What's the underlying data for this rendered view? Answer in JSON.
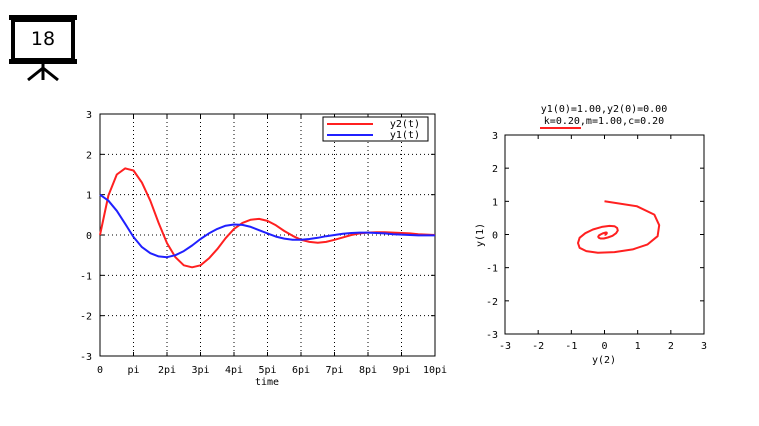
{
  "slide": {
    "number": "18"
  },
  "chart_data": [
    {
      "type": "line",
      "title": "",
      "xlabel": "time",
      "ylabel": "",
      "xlim": [
        0,
        10
      ],
      "ylim": [
        -3,
        3
      ],
      "x_unit": "pi",
      "xticks": [
        0,
        1,
        2,
        3,
        4,
        5,
        6,
        7,
        8,
        9,
        10
      ],
      "xtick_labels": [
        "0",
        "pi",
        "2pi",
        "3pi",
        "4pi",
        "5pi",
        "6pi",
        "7pi",
        "8pi",
        "9pi",
        "10pi"
      ],
      "yticks": [
        -3,
        -2,
        -1,
        0,
        1,
        2,
        3
      ],
      "ytick_labels": [
        "-3",
        "-2",
        "-1",
        "0",
        "1",
        "2",
        "3"
      ],
      "grid": true,
      "legend": "top-right",
      "series": [
        {
          "name": "y2(t)",
          "color": "#ff2020",
          "x": [
            0,
            0.25,
            0.5,
            0.75,
            1,
            1.25,
            1.5,
            1.75,
            2,
            2.25,
            2.5,
            2.75,
            3,
            3.25,
            3.5,
            3.75,
            4,
            4.25,
            4.5,
            4.75,
            5,
            5.25,
            5.5,
            5.75,
            6,
            6.25,
            6.5,
            6.75,
            7,
            7.25,
            7.5,
            7.75,
            8,
            8.25,
            8.5,
            8.75,
            9,
            9.25,
            9.5,
            9.75,
            10
          ],
          "values": [
            0,
            0.98,
            1.5,
            1.65,
            1.6,
            1.3,
            0.85,
            0.3,
            -0.2,
            -0.55,
            -0.75,
            -0.8,
            -0.75,
            -0.58,
            -0.35,
            -0.08,
            0.15,
            0.3,
            0.38,
            0.4,
            0.35,
            0.24,
            0.1,
            -0.02,
            -0.12,
            -0.17,
            -0.19,
            -0.17,
            -0.12,
            -0.06,
            0,
            0.04,
            0.06,
            0.07,
            0.07,
            0.06,
            0.05,
            0.04,
            0.02,
            0.01,
            0
          ]
        },
        {
          "name": "y1(t)",
          "color": "#2020ff",
          "x": [
            0,
            0.25,
            0.5,
            0.75,
            1,
            1.25,
            1.5,
            1.75,
            2,
            2.25,
            2.5,
            2.75,
            3,
            3.25,
            3.5,
            3.75,
            4,
            4.25,
            4.5,
            4.75,
            5,
            5.25,
            5.5,
            5.75,
            6,
            6.25,
            6.5,
            6.75,
            7,
            7.25,
            7.5,
            7.75,
            8,
            8.25,
            8.5,
            8.75,
            9,
            9.25,
            9.5,
            9.75,
            10
          ],
          "values": [
            1,
            0.85,
            0.6,
            0.28,
            -0.05,
            -0.3,
            -0.45,
            -0.53,
            -0.55,
            -0.5,
            -0.4,
            -0.26,
            -0.1,
            0.04,
            0.15,
            0.23,
            0.26,
            0.25,
            0.2,
            0.12,
            0.04,
            -0.04,
            -0.09,
            -0.12,
            -0.12,
            -0.1,
            -0.07,
            -0.03,
            0,
            0.03,
            0.05,
            0.06,
            0.06,
            0.05,
            0.04,
            0.02,
            0.01,
            0,
            -0.01,
            -0.01,
            -0.01
          ]
        }
      ]
    },
    {
      "type": "line",
      "title": "y1(0)=1.00,y2(0)=0.00",
      "subtitle": "k=0.20,m=1.00,c=0.20",
      "xlabel": "y(2)",
      "ylabel": "y(1)",
      "xlim": [
        -3,
        3
      ],
      "ylim": [
        -3,
        3
      ],
      "xticks": [
        -3,
        -2,
        -1,
        0,
        1,
        2,
        3
      ],
      "xtick_labels": [
        "-3",
        "-2",
        "-1",
        "0",
        "1",
        "2",
        "3"
      ],
      "yticks": [
        -3,
        -2,
        -1,
        0,
        1,
        2,
        3
      ],
      "ytick_labels": [
        "-3",
        "-2",
        "-1",
        "0",
        "1",
        "2",
        "3"
      ],
      "grid": false,
      "legend": "top-left",
      "series": [
        {
          "color": "#ff2020",
          "x": [
            0,
            0.98,
            1.5,
            1.65,
            1.6,
            1.3,
            0.85,
            0.3,
            -0.2,
            -0.55,
            -0.75,
            -0.8,
            -0.75,
            -0.58,
            -0.35,
            -0.08,
            0.15,
            0.3,
            0.38,
            0.4,
            0.35,
            0.24,
            0.1,
            -0.02,
            -0.12,
            -0.17,
            -0.19,
            -0.17,
            -0.12,
            -0.06,
            0,
            0.04,
            0.06,
            0.07,
            0.07,
            0.06,
            0.05,
            0.04,
            0.02,
            0.01,
            0
          ],
          "values": [
            1,
            0.85,
            0.6,
            0.28,
            -0.05,
            -0.3,
            -0.45,
            -0.53,
            -0.55,
            -0.5,
            -0.4,
            -0.26,
            -0.1,
            0.04,
            0.15,
            0.23,
            0.26,
            0.25,
            0.2,
            0.12,
            0.04,
            -0.04,
            -0.09,
            -0.12,
            -0.12,
            -0.1,
            -0.07,
            -0.03,
            0,
            0.03,
            0.05,
            0.06,
            0.06,
            0.05,
            0.04,
            0.02,
            0.01,
            0,
            -0.01,
            -0.01,
            -0.01
          ]
        }
      ]
    }
  ]
}
